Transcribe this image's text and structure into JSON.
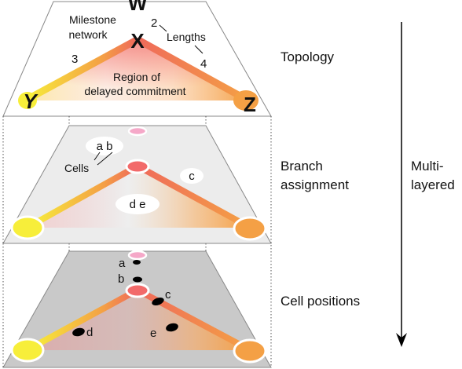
{
  "topology": {
    "title": "Topology",
    "milestone_label_line1": "Milestone",
    "milestone_label_line2": "network",
    "lengths_label": "Lengths",
    "length_values": [
      "2",
      "3",
      "4"
    ],
    "region_label_line1": "Region of",
    "region_label_line2": "delayed commitment",
    "node_w": "W",
    "node_x": "X",
    "node_y": "Y",
    "node_z": "Z"
  },
  "branch_assignment": {
    "title_line1": "Branch",
    "title_line2": "assignment",
    "cells_label": "Cells",
    "group_ab": "a b",
    "group_c": "c",
    "group_de": "d e"
  },
  "cell_positions": {
    "title": "Cell positions",
    "cells": [
      "a",
      "b",
      "c",
      "d",
      "e"
    ]
  },
  "multilayered_line1": "Multi-",
  "multilayered_line2": "layered",
  "colors": {
    "yellow": "#f7ee3a",
    "orange": "#f4a045",
    "pink": "#f26a6a",
    "layer1_fill": "#ffffff",
    "layer2_fill": "#ececec",
    "layer3_fill": "#c9c9c9"
  }
}
